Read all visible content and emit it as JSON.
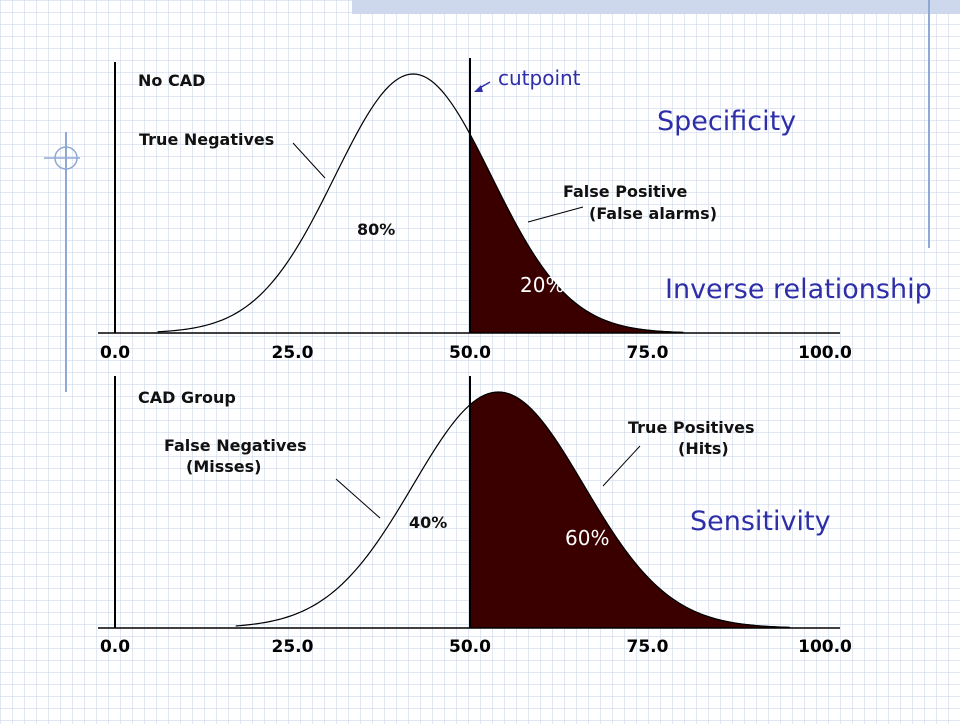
{
  "slide": {
    "annotations": {
      "cutpoint": "cutpoint",
      "specificity": "Specificity",
      "inverse": "Inverse relationship",
      "sensitivity": "Sensitivity"
    },
    "colors": {
      "accent_blue": "#2e2ea8",
      "shade": "#3a0000",
      "decor_blue": "#8fa8d4"
    }
  },
  "chart_data": [
    {
      "type": "area",
      "panel": "No CAD",
      "xlim": [
        0,
        100
      ],
      "xticks": [
        "0.0",
        "25.0",
        "50.0",
        "75.0",
        "100.0"
      ],
      "cutpoint": 50,
      "curve": {
        "x_start": 6,
        "x_end": 80,
        "mean": 42,
        "sd": 11
      },
      "regions": [
        {
          "label": "True Negatives",
          "percent": "80%",
          "side": "left",
          "shaded": false
        },
        {
          "label": "False Positive",
          "sublabel": "(False alarms)",
          "percent": "20%",
          "side": "right",
          "shaded": true
        }
      ]
    },
    {
      "type": "area",
      "panel": "CAD Group",
      "xlim": [
        0,
        100
      ],
      "xticks": [
        "0.0",
        "25.0",
        "50.0",
        "75.0",
        "100.0"
      ],
      "cutpoint": 50,
      "curve": {
        "x_start": 17,
        "x_end": 95,
        "mean": 54,
        "sd": 12
      },
      "regions": [
        {
          "label": "False Negatives",
          "sublabel": "(Misses)",
          "percent": "40%",
          "side": "left",
          "shaded": false
        },
        {
          "label": "True Positives",
          "sublabel": "(Hits)",
          "percent": "60%",
          "side": "right",
          "shaded": true
        }
      ]
    }
  ]
}
